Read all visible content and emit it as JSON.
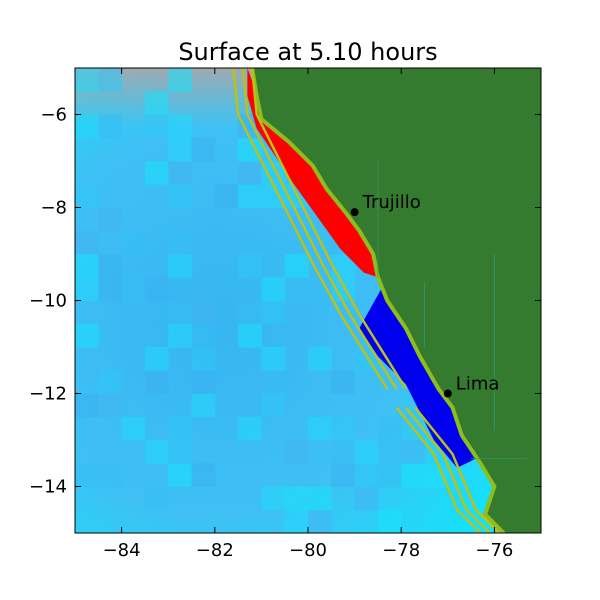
{
  "chart_data": {
    "type": "heatmap",
    "title": "Surface at 5.10 hours",
    "xlabel": "",
    "ylabel": "",
    "xlim": [
      -85,
      -75
    ],
    "ylim": [
      -15,
      -5
    ],
    "x_ticks": [
      -84,
      -82,
      -80,
      -78,
      -76
    ],
    "y_ticks": [
      -6,
      -8,
      -10,
      -12,
      -14
    ],
    "x_tick_labels": [
      "−84",
      "−82",
      "−80",
      "−78",
      "−76"
    ],
    "y_tick_labels": [
      "−6",
      "−8",
      "−10",
      "−12",
      "−14"
    ],
    "grid": false,
    "legend": "none",
    "colors": {
      "land": "#347b30",
      "ocean_deep": "#33b9f5",
      "ocean_shallow": "#00f0ff",
      "positive_wave": "#ff0000",
      "negative_wave": "#0000ee",
      "fault_lines": "#b7c21d",
      "gauge_lines": "#2f9f6f",
      "land_shallow_fringe": "#8fbd1b"
    },
    "cities": [
      {
        "name": "Trujillo",
        "lon": -79.0,
        "lat": -8.1
      },
      {
        "name": "Lima",
        "lon": -77.0,
        "lat": -12.0
      }
    ],
    "coastline": [
      [
        -81.2,
        -5.0
      ],
      [
        -81.1,
        -5.6
      ],
      [
        -81.0,
        -6.1
      ],
      [
        -80.4,
        -6.6
      ],
      [
        -79.9,
        -7.1
      ],
      [
        -79.6,
        -7.6
      ],
      [
        -79.2,
        -8.1
      ],
      [
        -78.9,
        -8.5
      ],
      [
        -78.6,
        -9.0
      ],
      [
        -78.5,
        -9.5
      ],
      [
        -78.3,
        -10.0
      ],
      [
        -77.9,
        -10.6
      ],
      [
        -77.6,
        -11.2
      ],
      [
        -77.2,
        -11.9
      ],
      [
        -76.9,
        -12.3
      ],
      [
        -76.7,
        -12.9
      ],
      [
        -76.3,
        -13.5
      ],
      [
        -76.0,
        -14.0
      ],
      [
        -76.2,
        -14.6
      ],
      [
        -75.8,
        -15.0
      ]
    ],
    "positive_wave_band": [
      [
        -81.3,
        -5.0
      ],
      [
        -80.9,
        -6.1
      ],
      [
        -80.4,
        -6.6
      ],
      [
        -79.9,
        -7.1
      ],
      [
        -79.6,
        -7.6
      ],
      [
        -79.2,
        -8.1
      ],
      [
        -78.9,
        -8.5
      ],
      [
        -78.6,
        -9.0
      ],
      [
        -78.5,
        -9.5
      ],
      [
        -78.8,
        -9.4
      ],
      [
        -79.3,
        -8.9
      ],
      [
        -79.8,
        -8.2
      ],
      [
        -80.3,
        -7.5
      ],
      [
        -80.7,
        -6.9
      ],
      [
        -81.1,
        -6.3
      ],
      [
        -81.3,
        -5.6
      ]
    ],
    "negative_wave_band": [
      [
        -78.4,
        -9.7
      ],
      [
        -77.9,
        -10.6
      ],
      [
        -77.6,
        -11.2
      ],
      [
        -77.2,
        -11.9
      ],
      [
        -76.9,
        -12.3
      ],
      [
        -76.7,
        -12.9
      ],
      [
        -76.4,
        -13.4
      ],
      [
        -76.8,
        -13.6
      ],
      [
        -77.3,
        -13.0
      ],
      [
        -77.5,
        -12.6
      ],
      [
        -77.9,
        -11.8
      ],
      [
        -78.5,
        -11.2
      ],
      [
        -78.9,
        -10.6
      ]
    ],
    "fault_lines": [
      [
        [
          -81.6,
          -5.0
        ],
        [
          -81.5,
          -6.0
        ],
        [
          -80.6,
          -7.8
        ],
        [
          -79.9,
          -9.2
        ],
        [
          -79.3,
          -10.3
        ],
        [
          -78.3,
          -11.9
        ]
      ],
      [
        [
          -81.4,
          -5.0
        ],
        [
          -81.3,
          -6.0
        ],
        [
          -80.4,
          -7.8
        ],
        [
          -79.7,
          -9.2
        ],
        [
          -79.1,
          -10.3
        ],
        [
          -78.1,
          -11.9
        ]
      ],
      [
        [
          -81.2,
          -5.0
        ],
        [
          -81.1,
          -6.0
        ],
        [
          -80.2,
          -7.8
        ],
        [
          -79.5,
          -9.2
        ],
        [
          -78.9,
          -10.3
        ],
        [
          -77.9,
          -11.9
        ]
      ],
      [
        [
          -78.1,
          -12.3
        ],
        [
          -77.3,
          -13.3
        ],
        [
          -76.8,
          -14.5
        ],
        [
          -76.3,
          -15.0
        ]
      ],
      [
        [
          -77.9,
          -12.3
        ],
        [
          -77.1,
          -13.3
        ],
        [
          -76.6,
          -14.5
        ],
        [
          -76.1,
          -15.0
        ]
      ],
      [
        [
          -77.7,
          -12.3
        ],
        [
          -76.9,
          -13.3
        ],
        [
          -76.4,
          -14.5
        ],
        [
          -75.9,
          -15.0
        ]
      ]
    ]
  }
}
